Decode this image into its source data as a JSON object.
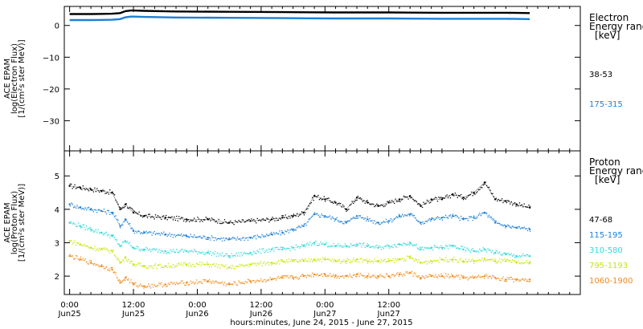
{
  "chart_data": [
    {
      "type": "line",
      "panel": "electron",
      "ylabel_lines": [
        "ACE EPAM",
        "log(Electron Flux)",
        "[1/(cm²s ster MeV)]"
      ],
      "ylim": [
        -39.5,
        6
      ],
      "yticks": [
        0,
        -10,
        -20,
        -30
      ],
      "legend_title_lines": [
        "Electron",
        "Energy ranges",
        "[keV]"
      ],
      "series": [
        {
          "name": "38-53",
          "color": "#000000",
          "x": [
            0,
            4,
            8,
            9.5,
            10.5,
            11.5,
            12,
            14,
            20,
            30,
            40,
            50,
            60,
            70,
            82,
            86.5
          ],
          "values": [
            3.6,
            3.6,
            3.7,
            3.9,
            4.5,
            4.7,
            4.7,
            4.6,
            4.4,
            4.3,
            4.2,
            4.1,
            4.1,
            4.0,
            4.0,
            3.9
          ]
        },
        {
          "name": "175-315",
          "color": "#1c7fd6",
          "x": [
            0,
            4,
            8,
            9.5,
            10.5,
            11.5,
            12,
            14,
            20,
            30,
            40,
            50,
            60,
            70,
            82,
            86.5
          ],
          "values": [
            1.7,
            1.7,
            1.8,
            2.0,
            2.6,
            2.8,
            2.8,
            2.7,
            2.5,
            2.4,
            2.3,
            2.2,
            2.2,
            2.1,
            2.1,
            2.0
          ]
        }
      ]
    },
    {
      "type": "scatter",
      "panel": "proton",
      "ylabel_lines": [
        "ACE EPAM",
        "log(Proton Flux)",
        "[1/(cm²s ster MeV)]"
      ],
      "ylim": [
        1.45,
        5.75
      ],
      "yticks": [
        2,
        3,
        4,
        5
      ],
      "legend_title_lines": [
        "Proton",
        "Energy ranges",
        "[keV]"
      ],
      "series": [
        {
          "name": "47-68",
          "color": "#000000",
          "x": [
            0,
            2,
            4,
            6,
            8,
            9.5,
            10.5,
            12,
            14,
            18,
            22,
            26,
            30,
            34,
            38,
            40,
            42,
            44,
            46,
            48,
            50,
            52,
            54,
            56,
            58,
            60,
            62,
            64,
            66,
            68,
            70,
            72,
            74,
            76,
            78,
            80,
            82,
            84,
            86.5
          ],
          "values": [
            4.7,
            4.65,
            4.6,
            4.55,
            4.5,
            4.0,
            4.15,
            3.9,
            3.8,
            3.75,
            3.7,
            3.7,
            3.6,
            3.65,
            3.7,
            3.75,
            3.8,
            3.9,
            4.4,
            4.3,
            4.2,
            4.0,
            4.35,
            4.2,
            4.1,
            4.2,
            4.3,
            4.4,
            4.1,
            4.3,
            4.3,
            4.45,
            4.35,
            4.5,
            4.8,
            4.3,
            4.25,
            4.15,
            4.05
          ]
        },
        {
          "name": "115-195",
          "color": "#1c7fd6",
          "x": [
            0,
            2,
            4,
            6,
            8,
            9.5,
            10.5,
            12,
            14,
            18,
            22,
            26,
            30,
            34,
            38,
            40,
            42,
            44,
            46,
            48,
            50,
            52,
            54,
            56,
            58,
            60,
            62,
            64,
            66,
            68,
            70,
            72,
            74,
            76,
            78,
            80,
            82,
            84,
            86.5
          ],
          "values": [
            4.15,
            4.05,
            4.0,
            3.95,
            3.9,
            3.5,
            3.7,
            3.35,
            3.3,
            3.25,
            3.2,
            3.15,
            3.1,
            3.15,
            3.25,
            3.3,
            3.4,
            3.5,
            3.85,
            3.8,
            3.7,
            3.6,
            3.8,
            3.7,
            3.6,
            3.65,
            3.8,
            3.85,
            3.6,
            3.7,
            3.75,
            3.8,
            3.7,
            3.75,
            3.9,
            3.6,
            3.5,
            3.45,
            3.4
          ]
        },
        {
          "name": "310-580",
          "color": "#33d9d9",
          "x": [
            0,
            2,
            4,
            6,
            8,
            9.5,
            10.5,
            12,
            14,
            18,
            22,
            26,
            30,
            34,
            38,
            40,
            42,
            44,
            46,
            48,
            50,
            52,
            54,
            56,
            58,
            60,
            62,
            64,
            66,
            68,
            70,
            72,
            74,
            76,
            78,
            80,
            82,
            84,
            86.5
          ],
          "values": [
            3.6,
            3.5,
            3.4,
            3.3,
            3.2,
            2.9,
            3.05,
            2.85,
            2.8,
            2.75,
            2.75,
            2.7,
            2.6,
            2.7,
            2.8,
            2.8,
            2.85,
            2.9,
            3.0,
            2.95,
            2.9,
            2.9,
            2.95,
            2.9,
            2.85,
            2.9,
            2.95,
            3.0,
            2.8,
            2.85,
            2.85,
            2.9,
            2.8,
            2.75,
            2.8,
            2.7,
            2.65,
            2.6,
            2.6
          ]
        },
        {
          "name": "795-1193",
          "color": "#c8e60a",
          "x": [
            0,
            2,
            4,
            6,
            8,
            9.5,
            10.5,
            12,
            14,
            18,
            22,
            26,
            30,
            34,
            38,
            40,
            42,
            44,
            46,
            48,
            50,
            52,
            54,
            56,
            58,
            60,
            62,
            64,
            66,
            68,
            70,
            72,
            74,
            76,
            78,
            80,
            82,
            84,
            86.5
          ],
          "values": [
            3.05,
            2.95,
            2.85,
            2.8,
            2.75,
            2.4,
            2.55,
            2.35,
            2.3,
            2.3,
            2.35,
            2.35,
            2.25,
            2.35,
            2.4,
            2.45,
            2.45,
            2.45,
            2.5,
            2.5,
            2.45,
            2.45,
            2.5,
            2.45,
            2.45,
            2.45,
            2.5,
            2.55,
            2.4,
            2.45,
            2.5,
            2.5,
            2.45,
            2.45,
            2.5,
            2.45,
            2.45,
            2.4,
            2.4
          ]
        },
        {
          "name": "1060-1900",
          "color": "#f08a1c",
          "x": [
            0,
            2,
            4,
            6,
            8,
            9.5,
            10.5,
            12,
            14,
            18,
            22,
            26,
            30,
            34,
            38,
            40,
            42,
            44,
            46,
            48,
            50,
            52,
            54,
            56,
            58,
            60,
            62,
            64,
            66,
            68,
            70,
            72,
            74,
            76,
            78,
            80,
            82,
            84,
            86.5
          ],
          "values": [
            2.6,
            2.5,
            2.4,
            2.3,
            2.2,
            1.8,
            1.95,
            1.75,
            1.7,
            1.75,
            1.8,
            1.85,
            1.75,
            1.85,
            1.9,
            1.95,
            1.95,
            2.0,
            2.05,
            2.05,
            2.0,
            2.0,
            2.05,
            2.0,
            2.0,
            2.0,
            2.05,
            2.1,
            1.95,
            2.0,
            2.0,
            2.0,
            1.95,
            1.95,
            2.0,
            1.95,
            1.9,
            1.9,
            1.9
          ]
        }
      ]
    }
  ],
  "x_axis": {
    "xlim": [
      -1,
      96
    ],
    "ticks": [
      {
        "x": 0,
        "time": "0:00",
        "date": "Jun25"
      },
      {
        "x": 12,
        "time": "12:00",
        "date": "Jun25"
      },
      {
        "x": 24,
        "time": "0:00",
        "date": "Jun26"
      },
      {
        "x": 36,
        "time": "12:00",
        "date": "Jun26"
      },
      {
        "x": 48,
        "time": "0:00",
        "date": "Jun27"
      },
      {
        "x": 60,
        "time": "12:00",
        "date": "Jun27"
      }
    ],
    "minor_step_hours": 2,
    "title": "hours:minutes, June 24, 2015 - June 27, 2015"
  }
}
